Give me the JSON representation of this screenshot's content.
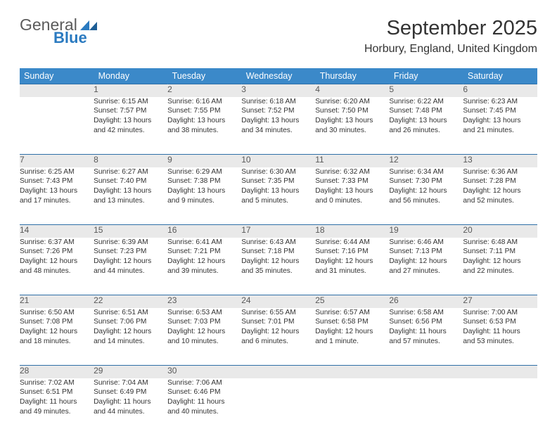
{
  "logo": {
    "line1": "General",
    "line2": "Blue"
  },
  "title": "September 2025",
  "location": "Horbury, England, United Kingdom",
  "colors": {
    "header_bg": "#3b89c9",
    "daynum_bg": "#e9e9e9",
    "row_border": "#2f6fa7",
    "logo_blue": "#2a7ac0"
  },
  "weekdays": [
    "Sunday",
    "Monday",
    "Tuesday",
    "Wednesday",
    "Thursday",
    "Friday",
    "Saturday"
  ],
  "weeks": [
    {
      "nums": [
        "",
        "1",
        "2",
        "3",
        "4",
        "5",
        "6"
      ],
      "cells": [
        null,
        {
          "sr": "Sunrise: 6:15 AM",
          "ss": "Sunset: 7:57 PM",
          "d1": "Daylight: 13 hours",
          "d2": "and 42 minutes."
        },
        {
          "sr": "Sunrise: 6:16 AM",
          "ss": "Sunset: 7:55 PM",
          "d1": "Daylight: 13 hours",
          "d2": "and 38 minutes."
        },
        {
          "sr": "Sunrise: 6:18 AM",
          "ss": "Sunset: 7:52 PM",
          "d1": "Daylight: 13 hours",
          "d2": "and 34 minutes."
        },
        {
          "sr": "Sunrise: 6:20 AM",
          "ss": "Sunset: 7:50 PM",
          "d1": "Daylight: 13 hours",
          "d2": "and 30 minutes."
        },
        {
          "sr": "Sunrise: 6:22 AM",
          "ss": "Sunset: 7:48 PM",
          "d1": "Daylight: 13 hours",
          "d2": "and 26 minutes."
        },
        {
          "sr": "Sunrise: 6:23 AM",
          "ss": "Sunset: 7:45 PM",
          "d1": "Daylight: 13 hours",
          "d2": "and 21 minutes."
        }
      ]
    },
    {
      "nums": [
        "7",
        "8",
        "9",
        "10",
        "11",
        "12",
        "13"
      ],
      "cells": [
        {
          "sr": "Sunrise: 6:25 AM",
          "ss": "Sunset: 7:43 PM",
          "d1": "Daylight: 13 hours",
          "d2": "and 17 minutes."
        },
        {
          "sr": "Sunrise: 6:27 AM",
          "ss": "Sunset: 7:40 PM",
          "d1": "Daylight: 13 hours",
          "d2": "and 13 minutes."
        },
        {
          "sr": "Sunrise: 6:29 AM",
          "ss": "Sunset: 7:38 PM",
          "d1": "Daylight: 13 hours",
          "d2": "and 9 minutes."
        },
        {
          "sr": "Sunrise: 6:30 AM",
          "ss": "Sunset: 7:35 PM",
          "d1": "Daylight: 13 hours",
          "d2": "and 5 minutes."
        },
        {
          "sr": "Sunrise: 6:32 AM",
          "ss": "Sunset: 7:33 PM",
          "d1": "Daylight: 13 hours",
          "d2": "and 0 minutes."
        },
        {
          "sr": "Sunrise: 6:34 AM",
          "ss": "Sunset: 7:30 PM",
          "d1": "Daylight: 12 hours",
          "d2": "and 56 minutes."
        },
        {
          "sr": "Sunrise: 6:36 AM",
          "ss": "Sunset: 7:28 PM",
          "d1": "Daylight: 12 hours",
          "d2": "and 52 minutes."
        }
      ]
    },
    {
      "nums": [
        "14",
        "15",
        "16",
        "17",
        "18",
        "19",
        "20"
      ],
      "cells": [
        {
          "sr": "Sunrise: 6:37 AM",
          "ss": "Sunset: 7:26 PM",
          "d1": "Daylight: 12 hours",
          "d2": "and 48 minutes."
        },
        {
          "sr": "Sunrise: 6:39 AM",
          "ss": "Sunset: 7:23 PM",
          "d1": "Daylight: 12 hours",
          "d2": "and 44 minutes."
        },
        {
          "sr": "Sunrise: 6:41 AM",
          "ss": "Sunset: 7:21 PM",
          "d1": "Daylight: 12 hours",
          "d2": "and 39 minutes."
        },
        {
          "sr": "Sunrise: 6:43 AM",
          "ss": "Sunset: 7:18 PM",
          "d1": "Daylight: 12 hours",
          "d2": "and 35 minutes."
        },
        {
          "sr": "Sunrise: 6:44 AM",
          "ss": "Sunset: 7:16 PM",
          "d1": "Daylight: 12 hours",
          "d2": "and 31 minutes."
        },
        {
          "sr": "Sunrise: 6:46 AM",
          "ss": "Sunset: 7:13 PM",
          "d1": "Daylight: 12 hours",
          "d2": "and 27 minutes."
        },
        {
          "sr": "Sunrise: 6:48 AM",
          "ss": "Sunset: 7:11 PM",
          "d1": "Daylight: 12 hours",
          "d2": "and 22 minutes."
        }
      ]
    },
    {
      "nums": [
        "21",
        "22",
        "23",
        "24",
        "25",
        "26",
        "27"
      ],
      "cells": [
        {
          "sr": "Sunrise: 6:50 AM",
          "ss": "Sunset: 7:08 PM",
          "d1": "Daylight: 12 hours",
          "d2": "and 18 minutes."
        },
        {
          "sr": "Sunrise: 6:51 AM",
          "ss": "Sunset: 7:06 PM",
          "d1": "Daylight: 12 hours",
          "d2": "and 14 minutes."
        },
        {
          "sr": "Sunrise: 6:53 AM",
          "ss": "Sunset: 7:03 PM",
          "d1": "Daylight: 12 hours",
          "d2": "and 10 minutes."
        },
        {
          "sr": "Sunrise: 6:55 AM",
          "ss": "Sunset: 7:01 PM",
          "d1": "Daylight: 12 hours",
          "d2": "and 6 minutes."
        },
        {
          "sr": "Sunrise: 6:57 AM",
          "ss": "Sunset: 6:58 PM",
          "d1": "Daylight: 12 hours",
          "d2": "and 1 minute."
        },
        {
          "sr": "Sunrise: 6:58 AM",
          "ss": "Sunset: 6:56 PM",
          "d1": "Daylight: 11 hours",
          "d2": "and 57 minutes."
        },
        {
          "sr": "Sunrise: 7:00 AM",
          "ss": "Sunset: 6:53 PM",
          "d1": "Daylight: 11 hours",
          "d2": "and 53 minutes."
        }
      ]
    },
    {
      "nums": [
        "28",
        "29",
        "30",
        "",
        "",
        "",
        ""
      ],
      "cells": [
        {
          "sr": "Sunrise: 7:02 AM",
          "ss": "Sunset: 6:51 PM",
          "d1": "Daylight: 11 hours",
          "d2": "and 49 minutes."
        },
        {
          "sr": "Sunrise: 7:04 AM",
          "ss": "Sunset: 6:49 PM",
          "d1": "Daylight: 11 hours",
          "d2": "and 44 minutes."
        },
        {
          "sr": "Sunrise: 7:06 AM",
          "ss": "Sunset: 6:46 PM",
          "d1": "Daylight: 11 hours",
          "d2": "and 40 minutes."
        },
        null,
        null,
        null,
        null
      ]
    }
  ]
}
